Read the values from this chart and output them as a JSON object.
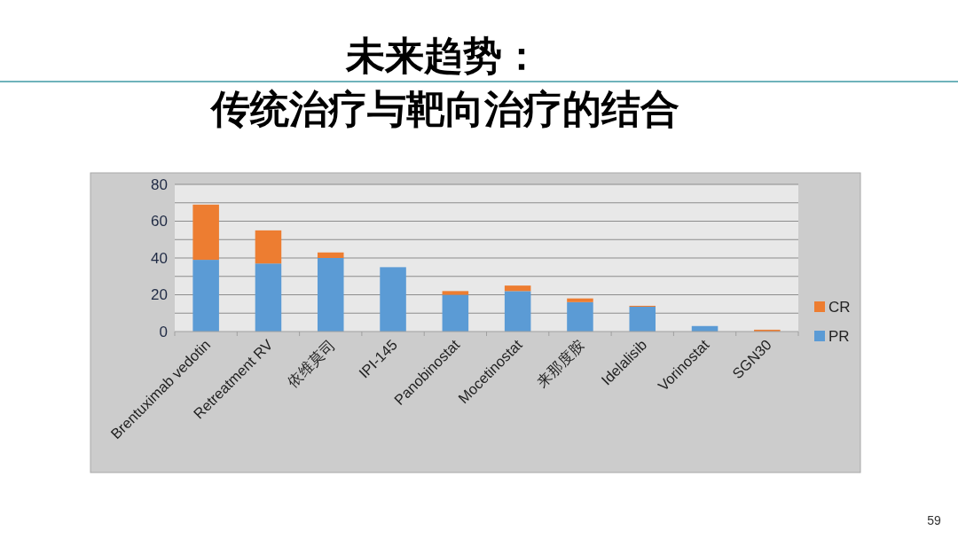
{
  "chart_data": {
    "type": "bar",
    "stacked": true,
    "title": "未来趋势：",
    "subtitle": "传统治疗与靶向治疗的结合",
    "categories": [
      "Brentuximab vedotin",
      "Retreatment RV",
      "依维莫司",
      "IPI-145",
      "Panobinostat",
      "Mocetinostat",
      "来那度胺",
      "Idelalisib",
      "Vorinostat",
      "SGN30"
    ],
    "series": [
      {
        "name": "PR",
        "color": "#5b9bd5",
        "values": [
          39,
          37,
          40,
          35,
          20,
          22,
          16,
          13.5,
          3,
          0
        ]
      },
      {
        "name": "CR",
        "color": "#ed7d31",
        "values": [
          30,
          18,
          3,
          0,
          2,
          3,
          2,
          0.5,
          0,
          1
        ]
      }
    ],
    "ylim": [
      0,
      80
    ],
    "yticks": [
      0,
      {
        "value": 10,
        "label": null
      },
      20,
      {
        "value": 30,
        "label": null
      },
      40,
      {
        "value": 50,
        "label": null
      },
      60,
      {
        "value": 70,
        "label": null
      },
      80
    ],
    "grid": "y",
    "legend": "right",
    "annotations": [
      "59"
    ]
  }
}
